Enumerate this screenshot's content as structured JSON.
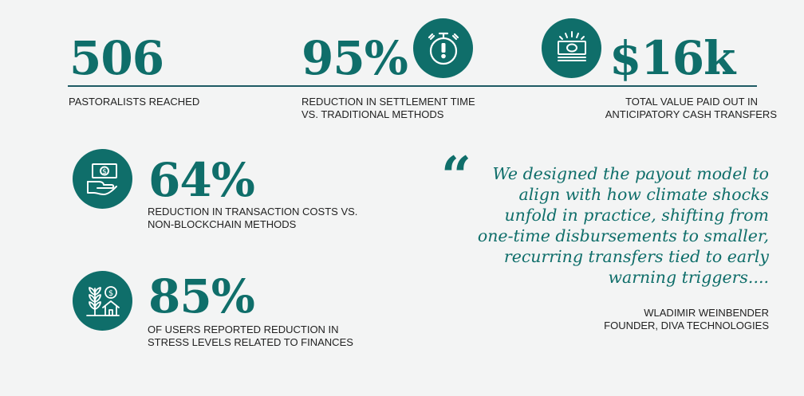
{
  "stats": [
    {
      "value": "506",
      "caption": [
        "PASTORALISTS REACHED"
      ]
    },
    {
      "value": "95%",
      "caption": [
        "REDUCTION IN SETTLEMENT TIME",
        "VS. TRADITIONAL METHODS"
      ]
    },
    {
      "value": "$16k",
      "caption": [
        "TOTAL VALUE PAID OUT IN",
        "ANTICIPATORY CASH TRANSFERS"
      ]
    },
    {
      "value": "64%",
      "caption": [
        "REDUCTION IN TRANSACTION COSTS VS.",
        "NON-BLOCKCHAIN METHODS"
      ]
    },
    {
      "value": "85%",
      "caption": [
        "OF USERS REPORTED REDUCTION IN",
        "STRESS LEVELS RELATED TO FINANCES"
      ]
    }
  ],
  "quote": {
    "mark": "“",
    "lines": [
      "We designed the payout model to",
      "align with how climate shocks",
      "unfold in practice, shifting from",
      "one-time disbursements to smaller,",
      "recurring transfers tied to early",
      "warning triggers...."
    ],
    "author": "WLADIMIR WEINBENDER",
    "title": "FOUNDER, DIVA TECHNOLOGIES"
  },
  "colors": {
    "accent": "#0f6e6a",
    "rule": "#1d5a64",
    "background": "#f3f4f4"
  },
  "icons": [
    "stopwatch-icon",
    "cash-stack-icon",
    "hand-holding-money-icon",
    "crop-house-money-icon"
  ]
}
